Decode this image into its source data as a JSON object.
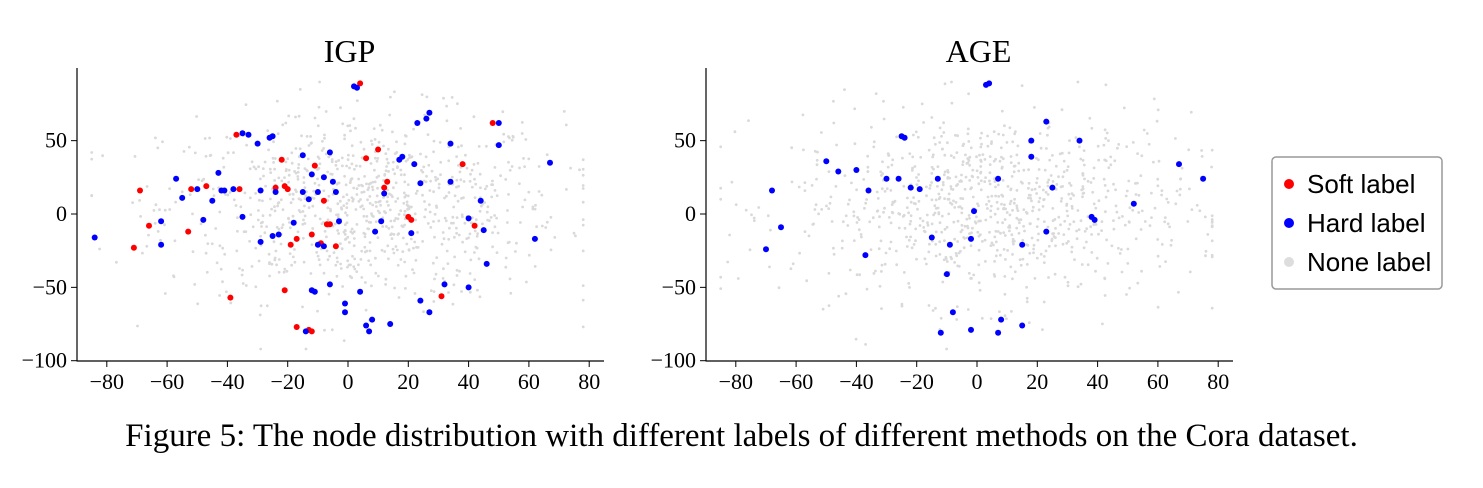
{
  "caption": "Figure 5: The node distribution with different labels of different methods on the Cora dataset.",
  "legend": {
    "placement": "right-center",
    "entries": [
      {
        "label": "Soft label",
        "color": "#ff0000"
      },
      {
        "label": "Hard label",
        "color": "#0000ff"
      },
      {
        "label": "None label",
        "color": "#dddddd"
      }
    ]
  },
  "chart_data": [
    {
      "type": "scatter",
      "title": "IGP",
      "xlabel": "",
      "ylabel": "",
      "xlim": [
        -90,
        85
      ],
      "ylim": [
        -100,
        95
      ],
      "xticks": [
        -80,
        -60,
        -40,
        -20,
        0,
        20,
        40,
        60,
        80
      ],
      "yticks": [
        -100,
        -50,
        0,
        50
      ],
      "grid": false,
      "series": [
        {
          "name": "Soft label",
          "color": "#ff0000",
          "points": [
            [
              4,
              89
            ],
            [
              -37,
              54
            ],
            [
              -11,
              33
            ],
            [
              -22,
              37
            ],
            [
              -21,
              19
            ],
            [
              -20,
              17
            ],
            [
              -24,
              18
            ],
            [
              -36,
              17
            ],
            [
              -47,
              19
            ],
            [
              -52,
              17
            ],
            [
              -69,
              16
            ],
            [
              -66,
              -8
            ],
            [
              -71,
              -23
            ],
            [
              -53,
              -12
            ],
            [
              -8,
              9
            ],
            [
              -7,
              -7
            ],
            [
              -6,
              -7
            ],
            [
              -9,
              -20
            ],
            [
              -12,
              -14
            ],
            [
              -17,
              -17
            ],
            [
              -19,
              -21
            ],
            [
              -21,
              -52
            ],
            [
              -39,
              -57
            ],
            [
              -17,
              -77
            ],
            [
              -13,
              -79
            ],
            [
              -12,
              -80
            ],
            [
              10,
              44
            ],
            [
              6,
              38
            ],
            [
              13,
              22
            ],
            [
              12,
              18
            ],
            [
              20,
              -2
            ],
            [
              21,
              -4
            ],
            [
              38,
              34
            ],
            [
              42,
              -8
            ],
            [
              31,
              -56
            ],
            [
              48,
              62
            ],
            [
              -4,
              -22
            ]
          ]
        },
        {
          "name": "Hard label",
          "color": "#0000ff",
          "points": [
            [
              2,
              87
            ],
            [
              3,
              86
            ],
            [
              -33,
              54
            ],
            [
              -35,
              55
            ],
            [
              -26,
              52
            ],
            [
              -25,
              53
            ],
            [
              -30,
              48
            ],
            [
              -6,
              42
            ],
            [
              -15,
              40
            ],
            [
              -4,
              15
            ],
            [
              -12,
              27
            ],
            [
              -8,
              25
            ],
            [
              -5,
              22
            ],
            [
              -10,
              15
            ],
            [
              -15,
              15
            ],
            [
              -13,
              10
            ],
            [
              -18,
              -6
            ],
            [
              -23,
              -14
            ],
            [
              -25,
              -15
            ],
            [
              -29,
              -19
            ],
            [
              -43,
              28
            ],
            [
              -42,
              16
            ],
            [
              -38,
              17
            ],
            [
              -35,
              -2
            ],
            [
              -29,
              16
            ],
            [
              -24,
              15
            ],
            [
              -57,
              24
            ],
            [
              -55,
              11
            ],
            [
              -50,
              17
            ],
            [
              -62,
              -5
            ],
            [
              -62,
              -21
            ],
            [
              -48,
              -4
            ],
            [
              -45,
              9
            ],
            [
              -41,
              16
            ],
            [
              -84,
              -16
            ],
            [
              -12,
              -52
            ],
            [
              -11,
              -53
            ],
            [
              -14,
              -80
            ],
            [
              -8,
              -22
            ],
            [
              -10,
              -21
            ],
            [
              -6,
              -48
            ],
            [
              -3,
              -5
            ],
            [
              4,
              -53
            ],
            [
              8,
              -72
            ],
            [
              7,
              -80
            ],
            [
              6,
              -76
            ],
            [
              -1,
              -61
            ],
            [
              -1,
              -67
            ],
            [
              14,
              -75
            ],
            [
              9,
              -12
            ],
            [
              11,
              -5
            ],
            [
              12,
              14
            ],
            [
              18,
              39
            ],
            [
              17,
              37
            ],
            [
              22,
              34
            ],
            [
              23,
              62
            ],
            [
              26,
              65
            ],
            [
              27,
              69
            ],
            [
              24,
              21
            ],
            [
              21,
              -13
            ],
            [
              34,
              22
            ],
            [
              40,
              -3
            ],
            [
              45,
              -11
            ],
            [
              44,
              9
            ],
            [
              50,
              47
            ],
            [
              50,
              62
            ],
            [
              34,
              48
            ],
            [
              46,
              -34
            ],
            [
              32,
              -48
            ],
            [
              27,
              -67
            ],
            [
              24,
              -59
            ],
            [
              40,
              -50
            ],
            [
              62,
              -17
            ],
            [
              67,
              35
            ]
          ]
        },
        {
          "name": "None label",
          "color": "#dddddd",
          "points": []
        }
      ]
    },
    {
      "type": "scatter",
      "title": "AGE",
      "xlabel": "",
      "ylabel": "",
      "xlim": [
        -90,
        85
      ],
      "ylim": [
        -100,
        95
      ],
      "xticks": [
        -80,
        -60,
        -40,
        -20,
        0,
        20,
        40,
        60,
        80
      ],
      "yticks": [
        -100,
        -50,
        0,
        50
      ],
      "grid": false,
      "series": [
        {
          "name": "Hard label",
          "color": "#0000ff",
          "points": [
            [
              3,
              88
            ],
            [
              4,
              89
            ],
            [
              -24,
              52
            ],
            [
              -25,
              53
            ],
            [
              23,
              63
            ],
            [
              18,
              50
            ],
            [
              34,
              50
            ],
            [
              18,
              39
            ],
            [
              -50,
              36
            ],
            [
              -46,
              29
            ],
            [
              -40,
              30
            ],
            [
              -36,
              16
            ],
            [
              -30,
              24
            ],
            [
              -26,
              24
            ],
            [
              -22,
              18
            ],
            [
              -19,
              17
            ],
            [
              -13,
              24
            ],
            [
              -1,
              2
            ],
            [
              7,
              24
            ],
            [
              25,
              18
            ],
            [
              -68,
              16
            ],
            [
              -65,
              -9
            ],
            [
              -70,
              -24
            ],
            [
              38,
              -2
            ],
            [
              39,
              -4
            ],
            [
              52,
              7
            ],
            [
              67,
              34
            ],
            [
              75,
              24
            ],
            [
              -37,
              -28
            ],
            [
              -15,
              -16
            ],
            [
              -9,
              -21
            ],
            [
              -2,
              -17
            ],
            [
              15,
              -21
            ],
            [
              23,
              -12
            ],
            [
              -10,
              -41
            ],
            [
              -8,
              -67
            ],
            [
              -12,
              -81
            ],
            [
              -2,
              -79
            ],
            [
              7,
              -81
            ],
            [
              8,
              -72
            ],
            [
              15,
              -76
            ]
          ]
        },
        {
          "name": "None label",
          "color": "#dddddd",
          "points": []
        }
      ]
    }
  ]
}
